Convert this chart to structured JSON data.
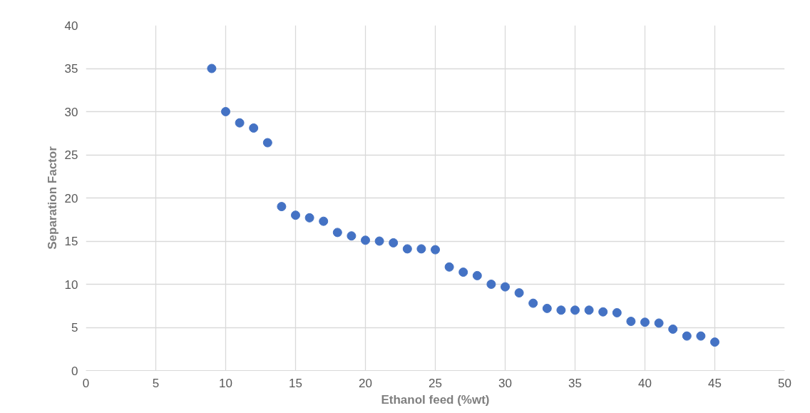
{
  "chart_data": {
    "type": "scatter",
    "xlabel": "Ethanol feed (%wt)",
    "ylabel": "Separation Factor",
    "x": [
      9,
      10,
      11,
      12,
      13,
      14,
      15,
      16,
      17,
      18,
      19,
      20,
      21,
      22,
      23,
      24,
      25,
      26,
      27,
      28,
      29,
      30,
      31,
      32,
      33,
      34,
      35,
      36,
      37,
      38,
      39,
      40,
      41,
      42,
      43,
      44,
      45
    ],
    "series": [
      {
        "color": "#4472c4",
        "values": [
          35,
          30,
          28.7,
          28.1,
          26.4,
          19,
          18,
          17.7,
          17.3,
          16,
          15.6,
          15.1,
          15,
          14.8,
          14.1,
          14.1,
          14,
          12,
          11.4,
          11,
          10,
          9.7,
          9,
          7.8,
          7.2,
          7,
          7,
          7,
          6.8,
          6.7,
          5.7,
          5.6,
          5.5,
          4.8,
          4,
          4,
          3.3
        ]
      }
    ],
    "xlim": [
      0,
      50
    ],
    "xticks": [
      0,
      5,
      10,
      15,
      20,
      25,
      30,
      35,
      40,
      45,
      50
    ],
    "ylim": [
      0,
      40
    ],
    "yticks": [
      0,
      5,
      10,
      15,
      20,
      25,
      30,
      35,
      40
    ],
    "grid": true,
    "marker": "circle"
  }
}
